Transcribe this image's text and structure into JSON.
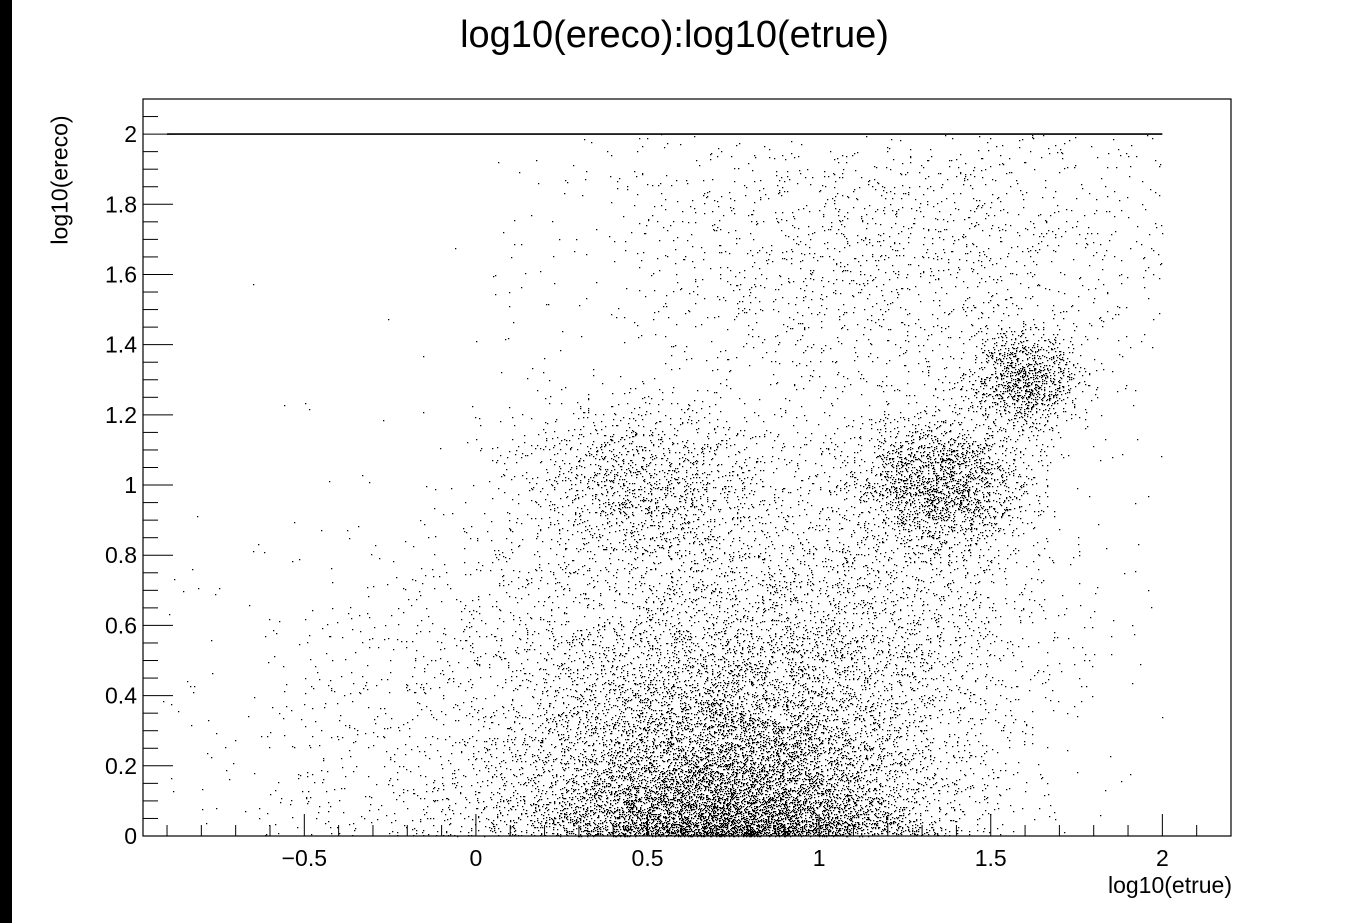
{
  "chart_data": {
    "type": "scatter",
    "title": "log10(ereco):log10(etrue)",
    "xlabel": "log10(etrue)",
    "ylabel": "log10(ereco)",
    "xlim": [
      -0.97,
      2.2
    ],
    "ylim": [
      0,
      2.1
    ],
    "x_ticks": [
      -0.5,
      0,
      0.5,
      1,
      1.5,
      2
    ],
    "x_tick_labels": [
      "−0.5",
      "0",
      "0.5",
      "1",
      "1.5",
      "2"
    ],
    "y_ticks": [
      0,
      0.2,
      0.4,
      0.6,
      0.8,
      1,
      1.2,
      1.4,
      1.6,
      1.8,
      2
    ],
    "y_tick_labels": [
      "0",
      "0.2",
      "0.4",
      "0.6",
      "0.8",
      "1",
      "1.2",
      "1.4",
      "1.6",
      "1.8",
      "2"
    ],
    "grid": false,
    "marker_color": "#000000",
    "saturation_line": {
      "y": 2,
      "x_range": [
        -0.9,
        2.0
      ]
    },
    "density_components": [
      {
        "x_mean": 0.75,
        "y_mean": 0.1,
        "x_sd": 0.28,
        "y_sd": 0.15,
        "weight": 0.34
      },
      {
        "x_mean": 0.7,
        "y_mean": 0.4,
        "x_sd": 0.32,
        "y_sd": 0.22,
        "weight": 0.16
      },
      {
        "x_mean": 1.35,
        "y_mean": 1.0,
        "x_sd": 0.13,
        "y_sd": 0.1,
        "weight": 0.1
      },
      {
        "x_mean": 1.6,
        "y_mean": 1.3,
        "x_sd": 0.08,
        "y_sd": 0.07,
        "weight": 0.05
      },
      {
        "x_mean": 0.5,
        "y_mean": 1.0,
        "x_sd": 0.2,
        "y_sd": 0.12,
        "weight": 0.07
      },
      {
        "x_mean": 0.3,
        "y_mean": 0.3,
        "x_sd": 0.5,
        "y_sd": 0.35,
        "weight": 0.1
      },
      {
        "x_mean": 1.2,
        "y_mean": 1.65,
        "x_sd": 0.45,
        "y_sd": 0.25,
        "weight": 0.09
      },
      {
        "x_mean": 1.15,
        "y_mean": 0.6,
        "x_sd": 0.3,
        "y_sd": 0.25,
        "weight": 0.09
      }
    ]
  }
}
